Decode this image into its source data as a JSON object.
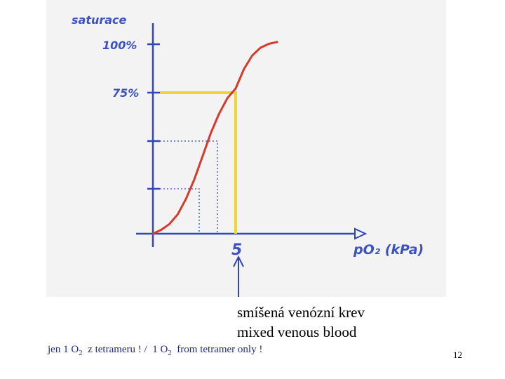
{
  "chart_data": {
    "type": "line",
    "title": "",
    "ylabel": "saturace",
    "xlabel": "pO₂ (kPa)",
    "y_tick_labels": [
      "100%",
      "75%"
    ],
    "x_tick_labels": [
      "5"
    ],
    "annotation_point": {
      "x": 5,
      "y": 75
    },
    "ylim": [
      0,
      100
    ],
    "grid": false,
    "series": [
      {
        "values_x": [
          0,
          0.5,
          1,
          1.5,
          2,
          2.5,
          3,
          3.5,
          4,
          4.5,
          5,
          5.5,
          6,
          6.5,
          7,
          7.5
        ],
        "values_y": [
          0,
          2,
          5,
          10,
          18,
          28,
          40,
          52,
          62,
          70,
          75,
          85,
          92,
          96,
          98,
          99
        ]
      }
    ],
    "colors": {
      "curve": "#d63a2a",
      "axes": "#2f45b8",
      "highlight": "#f0d23a"
    }
  },
  "caption": {
    "line1": "smíšená venózní krev",
    "line2": "mixed venous blood"
  },
  "footnote": {
    "part1": "jen 1 O",
    "sub1": "2",
    "part2": "  z tetrameru ! /  1 O",
    "sub2": "2",
    "part3": "  from tetramer only !"
  },
  "page_number": "12"
}
